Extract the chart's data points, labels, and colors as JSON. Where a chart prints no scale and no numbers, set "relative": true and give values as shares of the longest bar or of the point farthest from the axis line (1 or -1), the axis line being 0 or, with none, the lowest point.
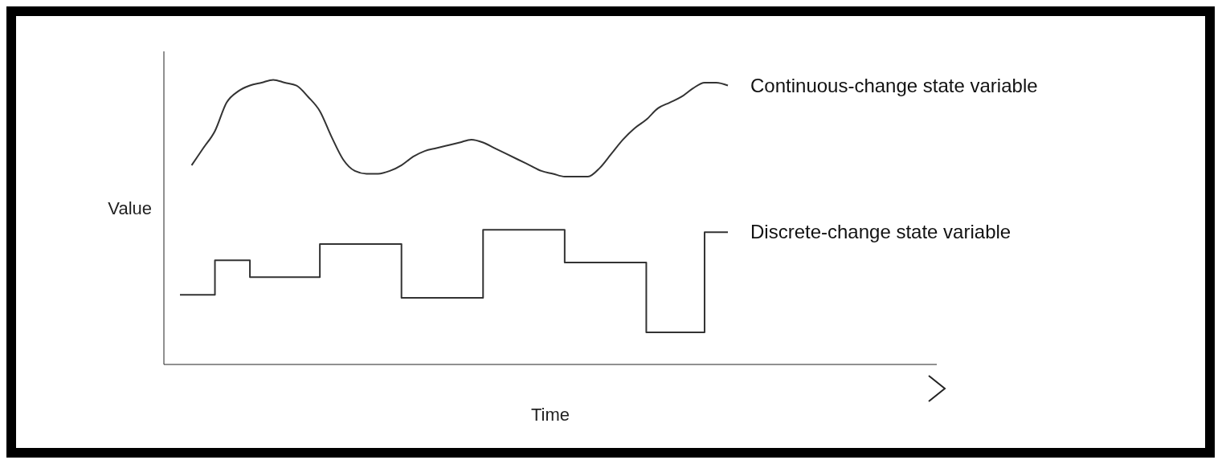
{
  "chart_data": {
    "type": "line",
    "relative": true,
    "xlabel": "Time",
    "ylabel": "Value",
    "categories": [
      null,
      null,
      null,
      null,
      null,
      null,
      null,
      null,
      null,
      null,
      null,
      null,
      null,
      null,
      null,
      null,
      null,
      null,
      null,
      null,
      null,
      null,
      null,
      null,
      null,
      null,
      null,
      null,
      null,
      null,
      null,
      null,
      null,
      null,
      null,
      null,
      null,
      null,
      null,
      null,
      null,
      null,
      null,
      null,
      null,
      null,
      null,
      null
    ],
    "series": [
      {
        "name": "Continuous-change state variable",
        "type": "line",
        "color": "#333333",
        "values": [
          null,
          0.7,
          0.76,
          0.82,
          0.92,
          0.96,
          0.98,
          0.99,
          1.0,
          0.99,
          0.98,
          0.94,
          0.89,
          0.8,
          0.72,
          0.68,
          0.67,
          0.67,
          0.68,
          0.7,
          0.73,
          0.75,
          0.76,
          0.77,
          0.78,
          0.79,
          0.78,
          0.76,
          0.74,
          0.72,
          0.7,
          0.68,
          0.67,
          0.66,
          0.66,
          0.66,
          0.69,
          0.74,
          0.79,
          0.83,
          0.86,
          0.9,
          0.92,
          0.94,
          0.97,
          0.99,
          0.99,
          0.98
        ]
      },
      {
        "name": "Discrete-change state variable",
        "type": "step",
        "color": "#333333",
        "values": [
          0.245,
          0.245,
          0.245,
          0.366,
          0.366,
          0.366,
          0.307,
          0.307,
          0.307,
          0.307,
          0.307,
          0.307,
          0.423,
          0.423,
          0.423,
          0.423,
          0.423,
          0.423,
          0.423,
          0.234,
          0.234,
          0.234,
          0.234,
          0.234,
          0.234,
          0.234,
          0.473,
          0.473,
          0.473,
          0.473,
          0.473,
          0.473,
          0.473,
          0.358,
          0.358,
          0.358,
          0.358,
          0.358,
          0.358,
          0.358,
          0.113,
          0.113,
          0.113,
          0.113,
          0.113,
          0.465,
          0.465,
          0.465
        ]
      }
    ],
    "grid": false,
    "legend": false,
    "marker": "none"
  }
}
